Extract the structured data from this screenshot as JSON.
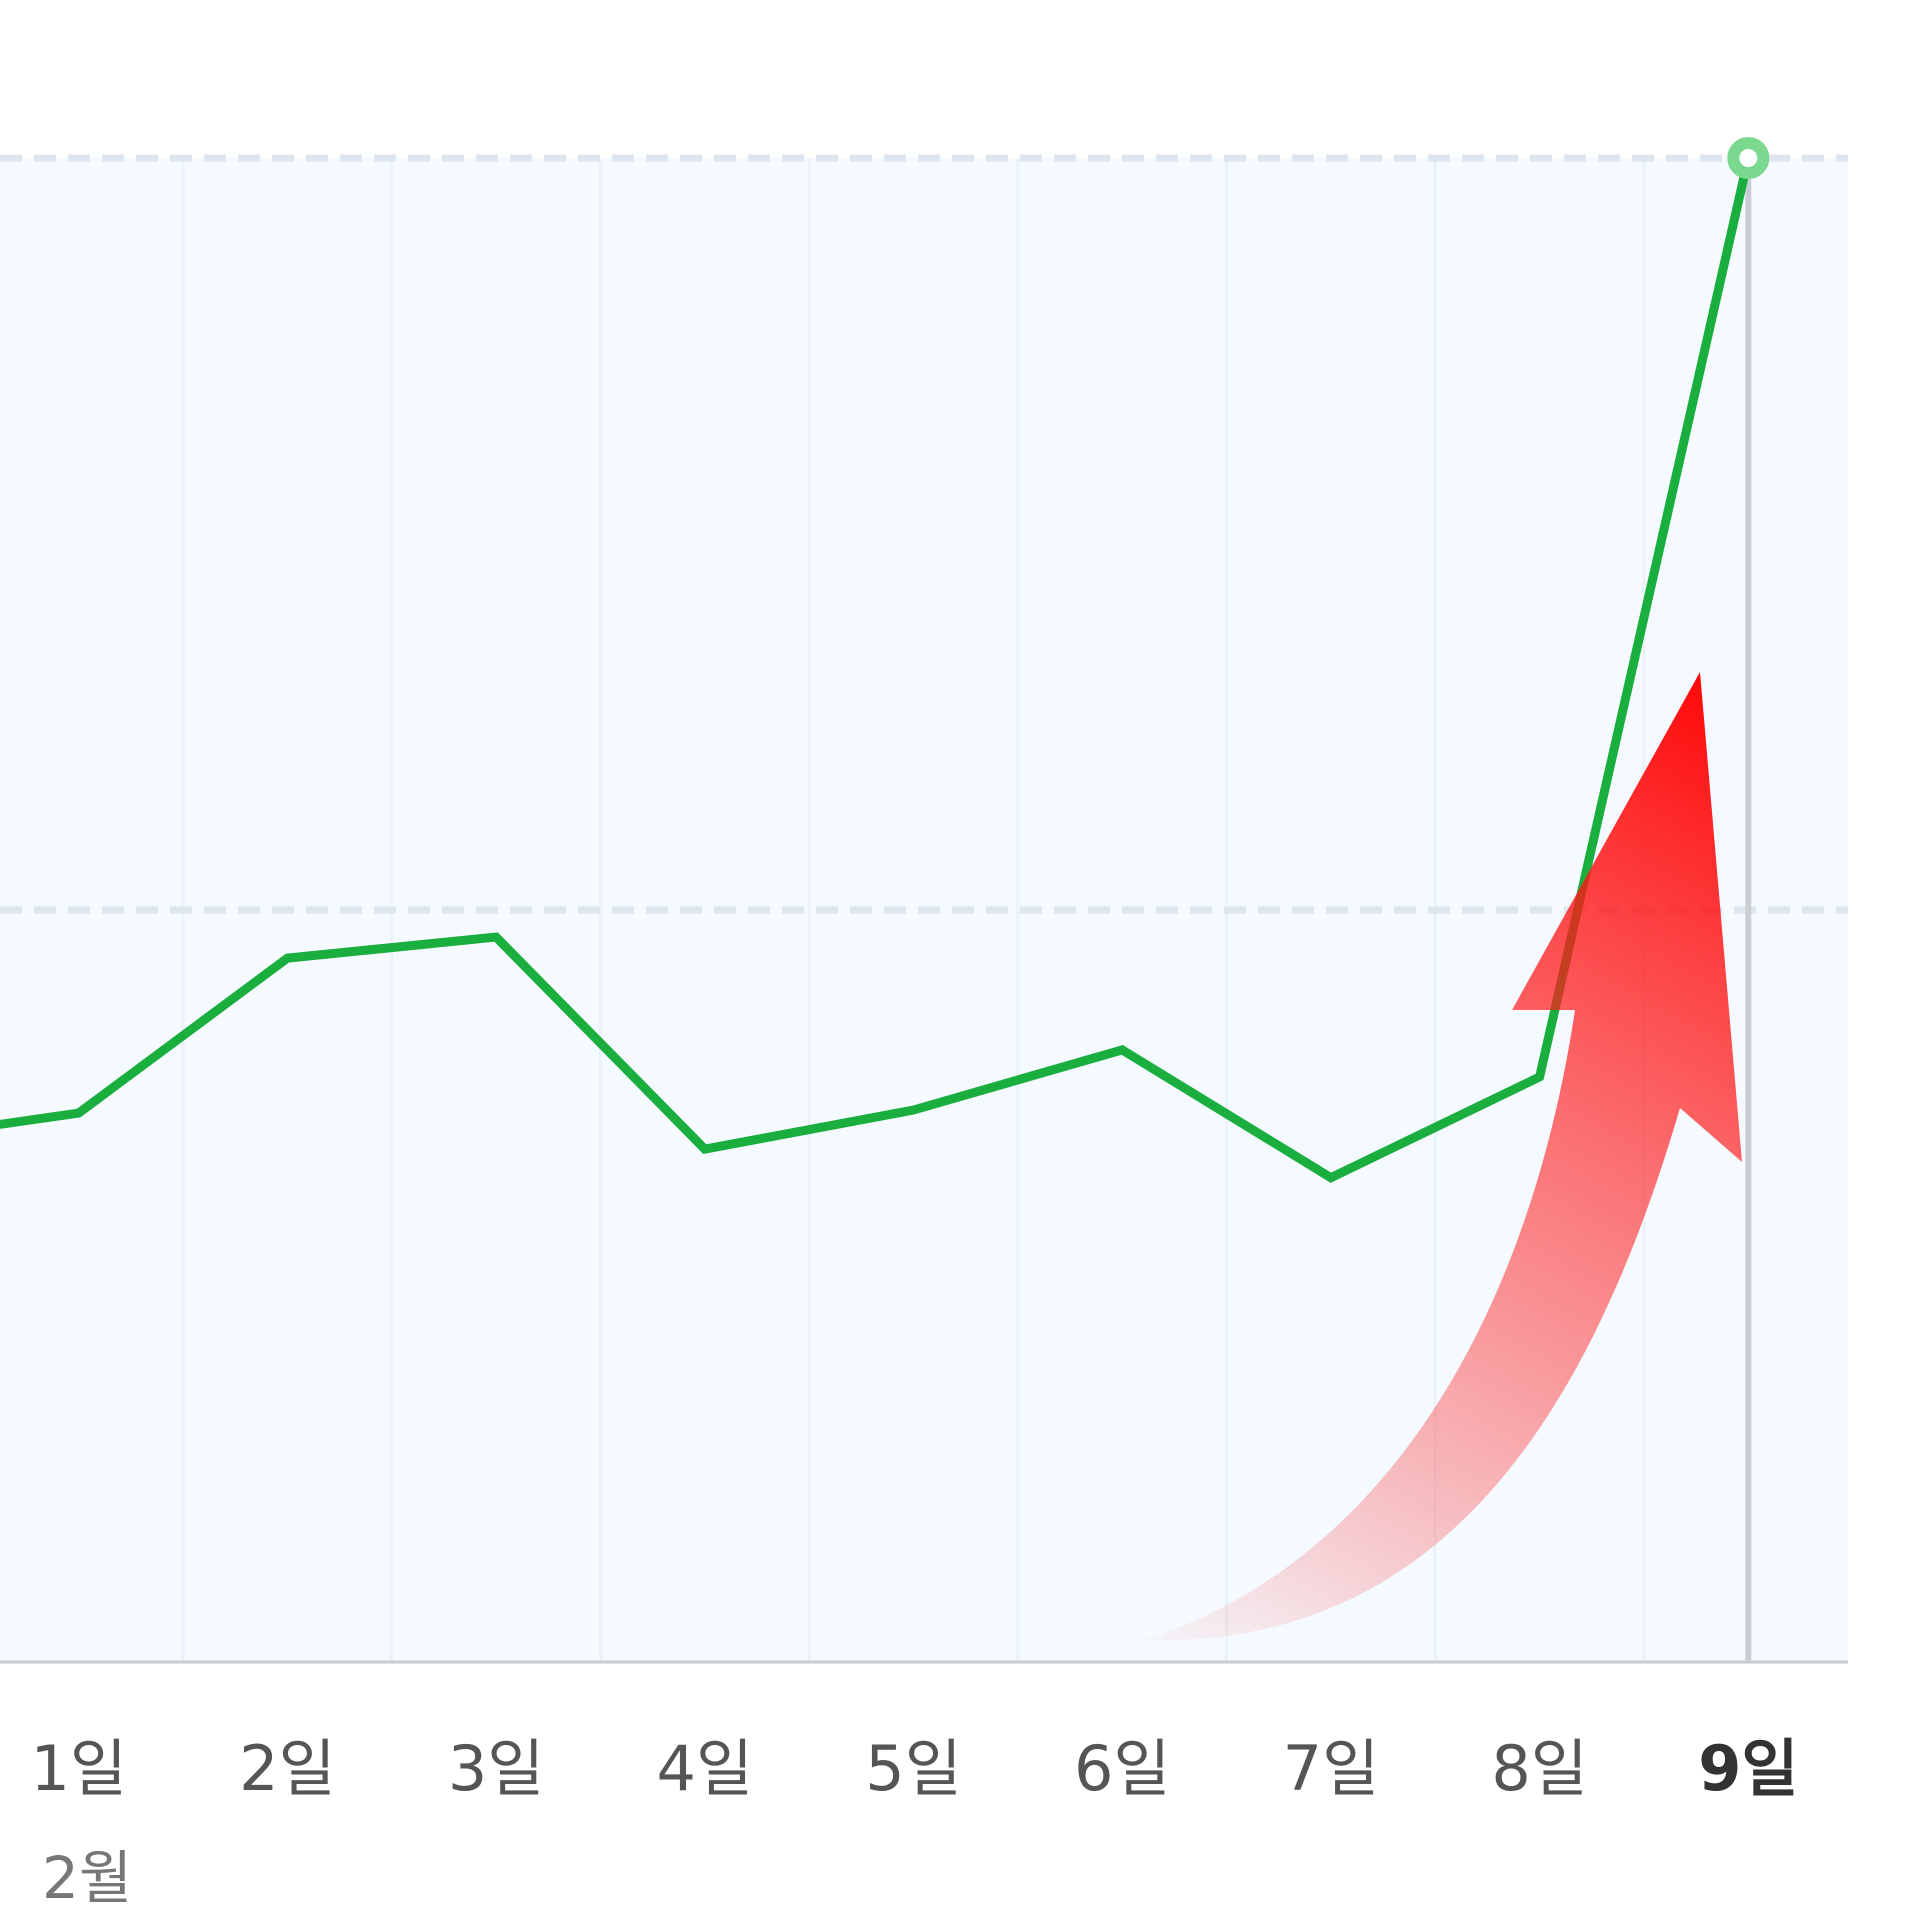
{
  "chart_data": {
    "type": "line",
    "title": "",
    "xlabel": "",
    "ylabel": "",
    "x": [
      "",
      "1일",
      "2일",
      "3일",
      "4일",
      "5일",
      "6일",
      "7일",
      "8일",
      "9일"
    ],
    "month_label": "2월",
    "highlighted_x": "9일",
    "series": [
      {
        "values": [
          0.345,
          0.365,
          0.468,
          0.482,
          0.341,
          0.367,
          0.407,
          0.322,
          0.389,
          1.0
        ]
      }
    ],
    "ylim": [
      0,
      1
    ],
    "gridlines_y": [
      0.5,
      1.0
    ],
    "grid": true,
    "legend": "none",
    "annotation": "red-curved-up-arrow",
    "colors": {
      "line": "#1aae3f",
      "marker": "#7bd88f",
      "plot_bg": "#f4faff",
      "grid": "#dde6ef",
      "axis": "#c7ccd1",
      "arrow": "#ff1010"
    }
  }
}
